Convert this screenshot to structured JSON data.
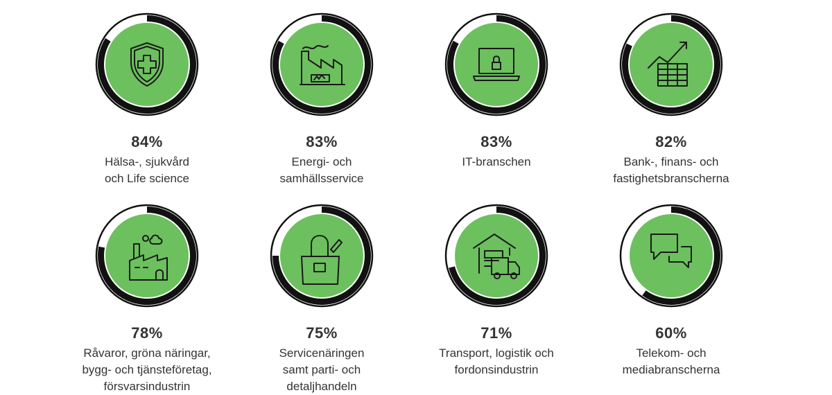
{
  "colors": {
    "fill": "#6cc05e",
    "ring": "#111111",
    "track": "#ffffff",
    "text": "#333333"
  },
  "chart_data": {
    "type": "pie",
    "title": "",
    "unit": "%",
    "items": [
      {
        "value": 84,
        "percent_label": "84%",
        "label_lines": [
          "Hälsa-, sjukvård",
          "och Life science"
        ],
        "icon": "shield-cross-icon"
      },
      {
        "value": 83,
        "percent_label": "83%",
        "label_lines": [
          "Energi- och",
          "samhällsservice"
        ],
        "icon": "factory-energy-icon"
      },
      {
        "value": 83,
        "percent_label": "83%",
        "label_lines": [
          "IT-branschen"
        ],
        "icon": "laptop-lock-icon"
      },
      {
        "value": 82,
        "percent_label": "82%",
        "label_lines": [
          "Bank-, finans- och",
          "fastighetsbranscherna"
        ],
        "icon": "chart-growth-icon"
      },
      {
        "value": 78,
        "percent_label": "78%",
        "label_lines": [
          "Råvaror, gröna näringar,",
          "bygg- och tjänsteföretag,",
          "försvarsindustrin"
        ],
        "icon": "factory-smoke-icon"
      },
      {
        "value": 75,
        "percent_label": "75%",
        "label_lines": [
          "Servicenäringen",
          "samt parti- och",
          "detaljhandeln"
        ],
        "icon": "shopping-bag-icon"
      },
      {
        "value": 71,
        "percent_label": "71%",
        "label_lines": [
          "Transport, logistik och",
          "fordonsindustrin"
        ],
        "icon": "warehouse-truck-icon"
      },
      {
        "value": 60,
        "percent_label": "60%",
        "label_lines": [
          "Telekom- och",
          "mediabranscherna"
        ],
        "icon": "chat-bubbles-icon"
      }
    ]
  }
}
